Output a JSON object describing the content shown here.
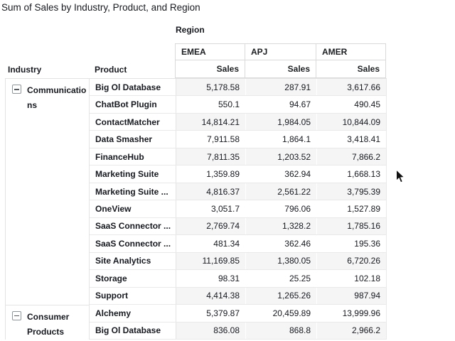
{
  "title": "Sum of Sales by Industry, Product, and Region",
  "pivot": {
    "column_dimension_label": "Region",
    "row_dimension_labels": [
      "Industry",
      "Product"
    ],
    "columns": [
      "EMEA",
      "APJ",
      "AMER"
    ],
    "measure_label": "Sales",
    "groups": [
      {
        "industry": "Communications",
        "collapse_icon": "minus-box",
        "rows": [
          {
            "product": "Big Ol Database",
            "values": [
              "5,178.58",
              "287.91",
              "3,617.66"
            ]
          },
          {
            "product": "ChatBot Plugin",
            "values": [
              "550.1",
              "94.67",
              "490.45"
            ]
          },
          {
            "product": "ContactMatcher",
            "values": [
              "14,814.21",
              "1,984.05",
              "10,844.09"
            ]
          },
          {
            "product": "Data Smasher",
            "values": [
              "7,911.58",
              "1,864.1",
              "3,418.41"
            ]
          },
          {
            "product": "FinanceHub",
            "values": [
              "7,811.35",
              "1,203.52",
              "7,866.2"
            ]
          },
          {
            "product": "Marketing Suite",
            "values": [
              "1,359.89",
              "362.94",
              "1,668.13"
            ]
          },
          {
            "product": "Marketing Suite ...",
            "values": [
              "4,816.37",
              "2,561.22",
              "3,795.39"
            ]
          },
          {
            "product": "OneView",
            "values": [
              "3,051.7",
              "796.06",
              "1,527.89"
            ]
          },
          {
            "product": "SaaS Connector ...",
            "values": [
              "2,769.74",
              "1,328.2",
              "1,785.16"
            ]
          },
          {
            "product": "SaaS Connector ...",
            "values": [
              "481.34",
              "362.46",
              "195.36"
            ]
          },
          {
            "product": "Site Analytics",
            "values": [
              "11,169.85",
              "1,380.05",
              "6,720.26"
            ]
          },
          {
            "product": "Storage",
            "values": [
              "98.31",
              "25.25",
              "102.18"
            ]
          },
          {
            "product": "Support",
            "values": [
              "4,414.38",
              "1,265.26",
              "987.94"
            ]
          }
        ]
      },
      {
        "industry": "Consumer Products",
        "collapse_icon": "minus-box",
        "rows": [
          {
            "product": "Alchemy",
            "values": [
              "5,379.87",
              "20,459.89",
              "13,999.96"
            ]
          },
          {
            "product": "Big Ol Database",
            "values": [
              "836.08",
              "868.8",
              "2,966.2"
            ]
          }
        ]
      }
    ]
  },
  "colors": {
    "text": "#16191f",
    "stripe": "#f5f5f5",
    "header_border": "#d9d9d9",
    "grid_border": "#e9e9e9",
    "icon_border": "#8d969c"
  }
}
